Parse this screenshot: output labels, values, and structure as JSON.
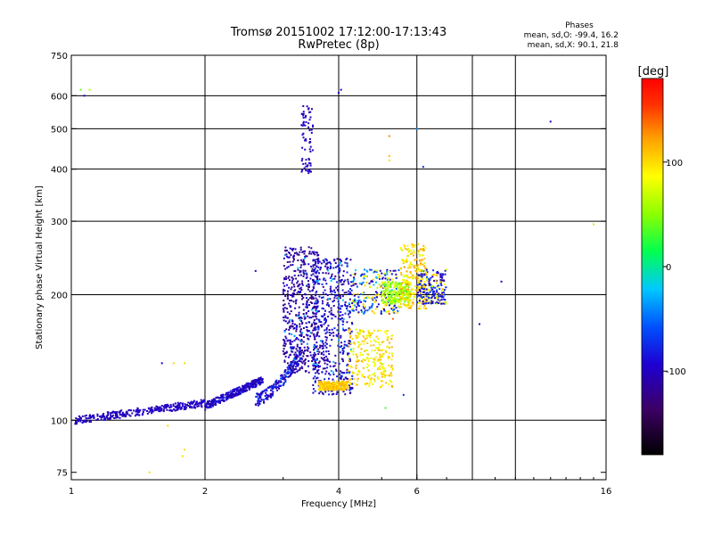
{
  "chart_data": {
    "type": "scatter",
    "title": "Tromsø 20151002 17:12:00-17:13:43",
    "subtitle": "RwPretec (8p)",
    "xlabel": "Frequency [MHz]",
    "ylabel": "Stationary phase Virtual Height [km]",
    "x_scale": "log2",
    "y_scale": "log",
    "xlim": [
      1,
      16
    ],
    "ylim": [
      72,
      750
    ],
    "x_ticks": [
      "1",
      "2",
      "4",
      "6",
      "16"
    ],
    "y_ticks": [
      "75",
      "100",
      "200",
      "300",
      "400",
      "500",
      "600",
      "750"
    ],
    "x_minor_grid": [
      1,
      2,
      4,
      6,
      8,
      10
    ],
    "y_grid": [
      100,
      200,
      300,
      400,
      500,
      600
    ],
    "grid": true,
    "phase_box": {
      "heading": "Phases",
      "line1": "mean, sd,O: -99.4, 16.2",
      "line2": "mean, sd,X:  90.1, 21.8"
    },
    "colorbar": {
      "label": "[deg]",
      "range": [
        -180,
        180
      ],
      "ticks": [
        "100",
        "0",
        "-100"
      ],
      "tick_values": [
        100,
        0,
        -100
      ],
      "colormap": "rainbow"
    },
    "clusters": [
      {
        "f": [
          1.02,
          2.0
        ],
        "h": [
          100,
          110
        ],
        "ph": [
          -110,
          -90
        ],
        "kind": "trace-low"
      },
      {
        "f": [
          2.0,
          2.7
        ],
        "h": [
          108,
          125
        ],
        "ph": [
          -115,
          -80
        ],
        "kind": "trace-mid"
      },
      {
        "f": [
          2.6,
          3.3
        ],
        "h": [
          112,
          145
        ],
        "ph": [
          -120,
          -60
        ],
        "kind": "rise"
      },
      {
        "f": [
          3.0,
          3.6
        ],
        "h": [
          130,
          260
        ],
        "ph": [
          -130,
          -90
        ],
        "kind": "cloud"
      },
      {
        "f": [
          3.5,
          4.3
        ],
        "h": [
          115,
          245
        ],
        "ph": [
          -125,
          -70
        ],
        "kind": "cloud"
      },
      {
        "f": [
          3.6,
          4.2
        ],
        "h": [
          118,
          124
        ],
        "ph": [
          90,
          120
        ],
        "kind": "yellow"
      },
      {
        "f": [
          4.2,
          5.3
        ],
        "h": [
          120,
          165
        ],
        "ph": [
          70,
          120
        ],
        "kind": "yellow"
      },
      {
        "f": [
          4.3,
          5.5
        ],
        "h": [
          180,
          230
        ],
        "ph": [
          -120,
          -20
        ],
        "kind": "mixed"
      },
      {
        "f": [
          5.0,
          5.8
        ],
        "h": [
          190,
          215
        ],
        "ph": [
          30,
          80
        ],
        "kind": "green"
      },
      {
        "f": [
          5.5,
          6.3
        ],
        "h": [
          185,
          265
        ],
        "ph": [
          70,
          130
        ],
        "kind": "yellow"
      },
      {
        "f": [
          6.0,
          7.0
        ],
        "h": [
          190,
          230
        ],
        "ph": [
          -110,
          -60
        ],
        "kind": "mixed"
      },
      {
        "f": [
          3.3,
          3.5
        ],
        "h": [
          390,
          570
        ],
        "ph": [
          -115,
          -90
        ],
        "kind": "spur"
      }
    ],
    "isolated_points": [
      {
        "x": 1.05,
        "y": 620,
        "ph": 40
      },
      {
        "x": 1.1,
        "y": 620,
        "ph": 60
      },
      {
        "x": 1.07,
        "y": 600,
        "ph": -100
      },
      {
        "x": 4.05,
        "y": 620,
        "ph": -100
      },
      {
        "x": 4.0,
        "y": 610,
        "ph": -100
      },
      {
        "x": 5.2,
        "y": 480,
        "ph": 130
      },
      {
        "x": 5.2,
        "y": 430,
        "ph": 110
      },
      {
        "x": 5.2,
        "y": 420,
        "ph": 100
      },
      {
        "x": 6.0,
        "y": 500,
        "ph": -40
      },
      {
        "x": 6.2,
        "y": 405,
        "ph": -80
      },
      {
        "x": 12.0,
        "y": 520,
        "ph": -100
      },
      {
        "x": 15.0,
        "y": 295,
        "ph": 60
      },
      {
        "x": 9.3,
        "y": 215,
        "ph": -100
      },
      {
        "x": 8.3,
        "y": 170,
        "ph": -100
      },
      {
        "x": 2.6,
        "y": 228,
        "ph": -100
      },
      {
        "x": 1.6,
        "y": 137,
        "ph": -90
      },
      {
        "x": 1.7,
        "y": 137,
        "ph": 100
      },
      {
        "x": 1.8,
        "y": 137,
        "ph": 100
      },
      {
        "x": 1.65,
        "y": 97,
        "ph": 100
      },
      {
        "x": 1.8,
        "y": 85,
        "ph": 100
      },
      {
        "x": 1.78,
        "y": 82,
        "ph": 100
      },
      {
        "x": 1.5,
        "y": 75,
        "ph": 100
      },
      {
        "x": 5.1,
        "y": 107,
        "ph": 30
      },
      {
        "x": 5.6,
        "y": 115,
        "ph": -70
      },
      {
        "x": 5.2,
        "y": 180,
        "ph": 160
      },
      {
        "x": 5.3,
        "y": 175,
        "ph": 140
      }
    ]
  }
}
